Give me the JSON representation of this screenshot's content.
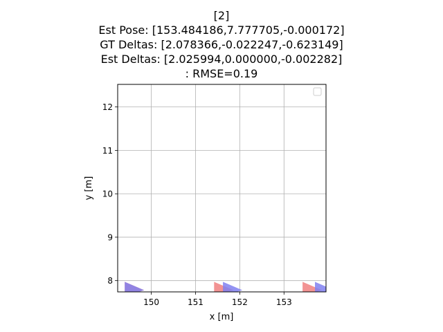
{
  "title_lines": [
    "[2]",
    "Est Pose: [153.484186,7.777705,-0.000172]",
    "GT Deltas: [2.078366,-0.022247,-0.623149]",
    "Est Deltas: [2.025994,0.000000,-0.002282]",
    ": RMSE=0.19"
  ],
  "chart_data": {
    "type": "scatter",
    "xlabel": "x [m]",
    "ylabel": "y [m]",
    "xlim": [
      149.24,
      153.95
    ],
    "ylim": [
      7.74,
      12.52
    ],
    "xticks": [
      150,
      151,
      152,
      153
    ],
    "yticks": [
      8,
      9,
      10,
      11,
      12
    ],
    "grid": true,
    "legend": "top-right (empty)",
    "series": [
      {
        "color": "#f08080",
        "poses": [
          [
            149.4,
            7.78
          ],
          [
            151.42,
            7.78
          ],
          [
            153.42,
            7.78
          ]
        ]
      },
      {
        "color": "#8080f0",
        "poses": [
          [
            149.4,
            7.78
          ],
          [
            151.62,
            7.78
          ],
          [
            153.7,
            7.78
          ]
        ]
      }
    ]
  }
}
